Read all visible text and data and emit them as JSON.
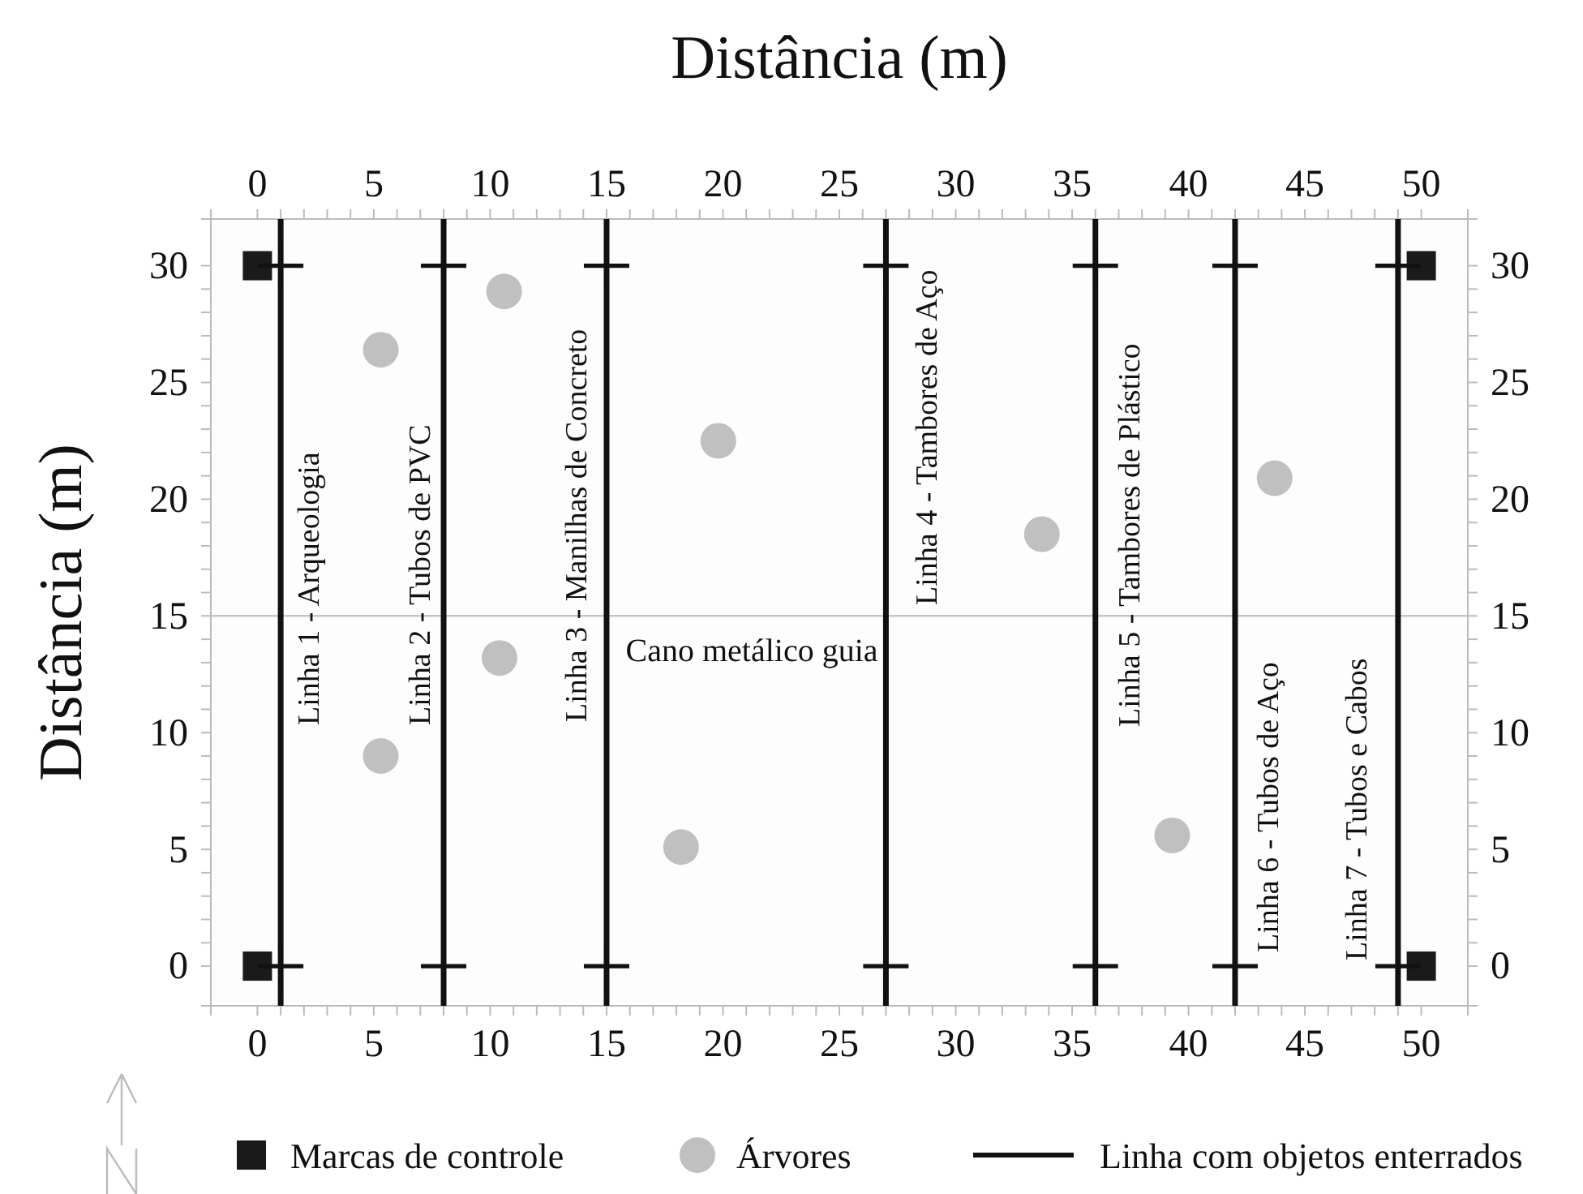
{
  "chart_data": {
    "type": "scatter",
    "x2label": "Distância (m)",
    "ylabel": "Distância (m)",
    "xlim": [
      -2,
      52
    ],
    "ylim": [
      -1.7,
      32
    ],
    "x2lim": [
      -2,
      52
    ],
    "y2lim": [
      -1.7,
      32
    ],
    "xticks": [
      0,
      {
        "value": 1,
        "label": null
      },
      {
        "value": 2,
        "label": null
      },
      {
        "value": 3,
        "label": null
      },
      {
        "value": 4,
        "label": null
      },
      5,
      {
        "value": 6,
        "label": null
      },
      {
        "value": 7,
        "label": null
      },
      {
        "value": 8,
        "label": null
      },
      {
        "value": 9,
        "label": null
      },
      10,
      {
        "value": 11,
        "label": null
      },
      {
        "value": 12,
        "label": null
      },
      {
        "value": 13,
        "label": null
      },
      {
        "value": 14,
        "label": null
      },
      15,
      {
        "value": 16,
        "label": null
      },
      {
        "value": 17,
        "label": null
      },
      {
        "value": 18,
        "label": null
      },
      {
        "value": 19,
        "label": null
      },
      20,
      {
        "value": 21,
        "label": null
      },
      {
        "value": 22,
        "label": null
      },
      {
        "value": 23,
        "label": null
      },
      {
        "value": 24,
        "label": null
      },
      25,
      {
        "value": 26,
        "label": null
      },
      {
        "value": 27,
        "label": null
      },
      {
        "value": 28,
        "label": null
      },
      {
        "value": 29,
        "label": null
      },
      30,
      {
        "value": 31,
        "label": null
      },
      {
        "value": 32,
        "label": null
      },
      {
        "value": 33,
        "label": null
      },
      {
        "value": 34,
        "label": null
      },
      35,
      {
        "value": 36,
        "label": null
      },
      {
        "value": 37,
        "label": null
      },
      {
        "value": 38,
        "label": null
      },
      {
        "value": 39,
        "label": null
      },
      40,
      {
        "value": 41,
        "label": null
      },
      {
        "value": 42,
        "label": null
      },
      {
        "value": 43,
        "label": null
      },
      {
        "value": 44,
        "label": null
      },
      45,
      {
        "value": 46,
        "label": null
      },
      {
        "value": 47,
        "label": null
      },
      {
        "value": 48,
        "label": null
      },
      {
        "value": 49,
        "label": null
      },
      50
    ],
    "x2ticks": [
      0,
      {
        "value": 1,
        "label": null
      },
      {
        "value": 2,
        "label": null
      },
      {
        "value": 3,
        "label": null
      },
      {
        "value": 4,
        "label": null
      },
      5,
      {
        "value": 6,
        "label": null
      },
      {
        "value": 7,
        "label": null
      },
      {
        "value": 8,
        "label": null
      },
      {
        "value": 9,
        "label": null
      },
      10,
      {
        "value": 11,
        "label": null
      },
      {
        "value": 12,
        "label": null
      },
      {
        "value": 13,
        "label": null
      },
      {
        "value": 14,
        "label": null
      },
      15,
      {
        "value": 16,
        "label": null
      },
      {
        "value": 17,
        "label": null
      },
      {
        "value": 18,
        "label": null
      },
      {
        "value": 19,
        "label": null
      },
      20,
      {
        "value": 21,
        "label": null
      },
      {
        "value": 22,
        "label": null
      },
      {
        "value": 23,
        "label": null
      },
      {
        "value": 24,
        "label": null
      },
      25,
      {
        "value": 26,
        "label": null
      },
      {
        "value": 27,
        "label": null
      },
      {
        "value": 28,
        "label": null
      },
      {
        "value": 29,
        "label": null
      },
      30,
      {
        "value": 31,
        "label": null
      },
      {
        "value": 32,
        "label": null
      },
      {
        "value": 33,
        "label": null
      },
      {
        "value": 34,
        "label": null
      },
      35,
      {
        "value": 36,
        "label": null
      },
      {
        "value": 37,
        "label": null
      },
      {
        "value": 38,
        "label": null
      },
      {
        "value": 39,
        "label": null
      },
      40,
      {
        "value": 41,
        "label": null
      },
      {
        "value": 42,
        "label": null
      },
      {
        "value": 43,
        "label": null
      },
      {
        "value": 44,
        "label": null
      },
      45,
      {
        "value": 46,
        "label": null
      },
      {
        "value": 47,
        "label": null
      },
      {
        "value": 48,
        "label": null
      },
      {
        "value": 49,
        "label": null
      },
      50
    ],
    "yticks": [
      0,
      {
        "value": 1,
        "label": null
      },
      {
        "value": 2,
        "label": null
      },
      {
        "value": 3,
        "label": null
      },
      {
        "value": 4,
        "label": null
      },
      5,
      {
        "value": 6,
        "label": null
      },
      {
        "value": 7,
        "label": null
      },
      {
        "value": 8,
        "label": null
      },
      {
        "value": 9,
        "label": null
      },
      10,
      {
        "value": 11,
        "label": null
      },
      {
        "value": 12,
        "label": null
      },
      {
        "value": 13,
        "label": null
      },
      {
        "value": 14,
        "label": null
      },
      15,
      {
        "value": 16,
        "label": null
      },
      {
        "value": 17,
        "label": null
      },
      {
        "value": 18,
        "label": null
      },
      {
        "value": 19,
        "label": null
      },
      20,
      {
        "value": 21,
        "label": null
      },
      {
        "value": 22,
        "label": null
      },
      {
        "value": 23,
        "label": null
      },
      {
        "value": 24,
        "label": null
      },
      25,
      {
        "value": 26,
        "label": null
      },
      {
        "value": 27,
        "label": null
      },
      {
        "value": 28,
        "label": null
      },
      {
        "value": 29,
        "label": null
      },
      30
    ],
    "y2ticks": [
      0,
      {
        "value": 1,
        "label": null
      },
      {
        "value": 2,
        "label": null
      },
      {
        "value": 3,
        "label": null
      },
      {
        "value": 4,
        "label": null
      },
      5,
      {
        "value": 6,
        "label": null
      },
      {
        "value": 7,
        "label": null
      },
      {
        "value": 8,
        "label": null
      },
      {
        "value": 9,
        "label": null
      },
      10,
      {
        "value": 11,
        "label": null
      },
      {
        "value": 12,
        "label": null
      },
      {
        "value": 13,
        "label": null
      },
      {
        "value": 14,
        "label": null
      },
      15,
      {
        "value": 16,
        "label": null
      },
      {
        "value": 17,
        "label": null
      },
      {
        "value": 18,
        "label": null
      },
      {
        "value": 19,
        "label": null
      },
      20,
      {
        "value": 21,
        "label": null
      },
      {
        "value": 22,
        "label": null
      },
      {
        "value": 23,
        "label": null
      },
      {
        "value": 24,
        "label": null
      },
      25,
      {
        "value": 26,
        "label": null
      },
      {
        "value": 27,
        "label": null
      },
      {
        "value": 28,
        "label": null
      },
      {
        "value": 29,
        "label": null
      },
      30
    ],
    "legend": "bottom",
    "series": [
      {
        "name": "Marcas de controle",
        "marker": "square",
        "color": "#1a1a1a",
        "x": [
          0,
          0,
          50,
          50
        ],
        "values": [
          0,
          30,
          0,
          30
        ]
      },
      {
        "name": "Árvores",
        "marker": "circle",
        "color": "#c0c0c0",
        "x": [
          10.6,
          5.3,
          19.8,
          10.4,
          5.3,
          18.2,
          33.7,
          43.7,
          39.3
        ],
        "values": [
          28.9,
          26.4,
          22.5,
          13.2,
          9.0,
          5.1,
          18.5,
          20.9,
          5.6
        ]
      },
      {
        "name": "Linha com objetos enterrados",
        "marker": "cross",
        "color": "#111111",
        "x": [
          1,
          1,
          8,
          8,
          15,
          15,
          27,
          27,
          36,
          36,
          42,
          42,
          49,
          49
        ],
        "values": [
          0,
          30,
          0,
          30,
          0,
          30,
          0,
          30,
          0,
          30,
          0,
          30,
          0,
          30
        ]
      }
    ],
    "ref_lines": [
      {
        "axis": "y",
        "value": 15,
        "label": "Cano metálico guia",
        "color": "#bbbbbb"
      },
      {
        "axis": "x",
        "value": 1,
        "label": "Linha 1 - Arqueologia",
        "color": "#111111"
      },
      {
        "axis": "x",
        "value": 8,
        "label": "Linha 2 - Tubos de PVC",
        "color": "#111111"
      },
      {
        "axis": "x",
        "value": 15,
        "label": "Linha 3 - Manilhas de Concreto",
        "color": "#111111"
      },
      {
        "axis": "x",
        "value": 27,
        "label": "Linha 4 - Tambores de Aço",
        "color": "#111111"
      },
      {
        "axis": "x",
        "value": 36,
        "label": "Linha 5 - Tambores de Plástico",
        "color": "#111111"
      },
      {
        "axis": "x",
        "value": 42,
        "label": "Linha 6 - Tubos de Aço",
        "color": "#111111"
      },
      {
        "axis": "x",
        "value": 49,
        "label": "Linha 7 - Tubos e Cabos",
        "color": "#111111"
      }
    ]
  }
}
